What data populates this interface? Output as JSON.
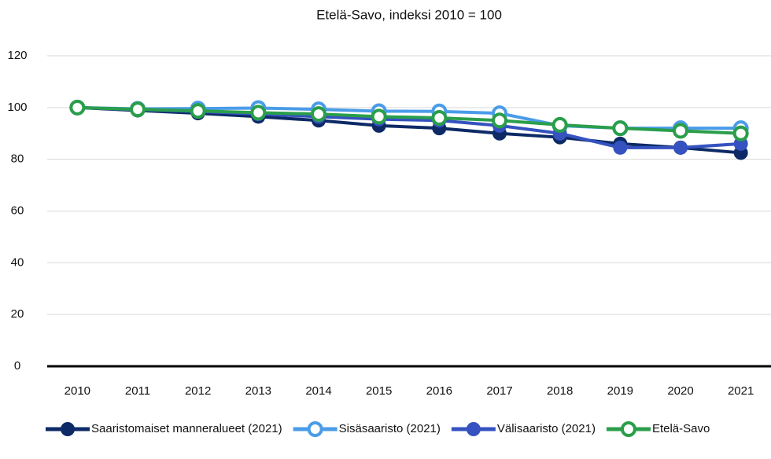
{
  "chart_data": {
    "type": "line",
    "title": "Etelä-Savo, indeksi 2010 = 100",
    "categories": [
      "2010",
      "2011",
      "2012",
      "2013",
      "2014",
      "2015",
      "2016",
      "2017",
      "2018",
      "2019",
      "2020",
      "2021"
    ],
    "series": [
      {
        "name": "Saaristomaiset manneralueet (2021)",
        "color": "#0d2a66",
        "marker": "filled",
        "values": [
          100,
          98.9,
          97.8,
          96.5,
          95,
          93,
          92,
          90,
          88.5,
          86,
          84.5,
          82.5
        ]
      },
      {
        "name": "Sisäsaaristo (2021)",
        "color": "#4a9ce8",
        "marker": "open",
        "values": [
          100,
          99.5,
          99.6,
          99.8,
          99.3,
          98.6,
          98.5,
          97.8,
          93,
          92,
          92,
          92
        ]
      },
      {
        "name": "Välisaaristo (2021)",
        "color": "#3552c0",
        "marker": "filled",
        "values": [
          100,
          99.2,
          98.5,
          97.5,
          96.5,
          95.5,
          95,
          93,
          90,
          84.5,
          84.5,
          86
        ]
      },
      {
        "name": "Etelä-Savo",
        "color": "#2a9e4a",
        "marker": "open",
        "values": [
          100,
          99.3,
          98.7,
          98,
          97.5,
          96.5,
          96,
          95,
          93.3,
          92,
          91,
          90
        ]
      }
    ],
    "ylim": [
      0,
      120
    ],
    "yticks": [
      0,
      20,
      40,
      60,
      80,
      100,
      120
    ],
    "grid": true,
    "legend": "bottom"
  }
}
